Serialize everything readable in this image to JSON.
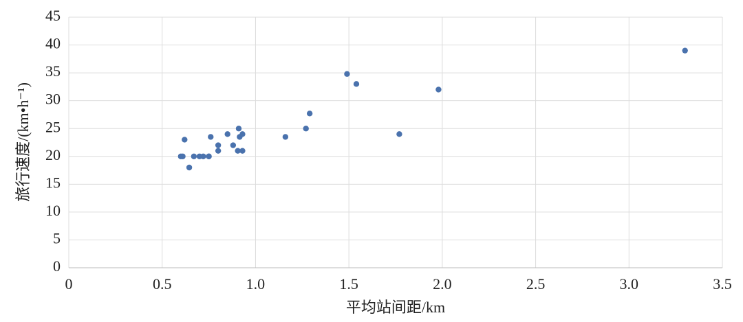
{
  "chart_data": {
    "type": "scatter",
    "x_label": "平均站间距/km",
    "y_label": "旅行速度/(km•h⁻¹)",
    "series": [
      {
        "color": "#4a72ad",
        "x": [
          0.6,
          0.61,
          0.62,
          0.645,
          0.67,
          0.7,
          0.72,
          0.75,
          0.75,
          0.76,
          0.8,
          0.8,
          0.85,
          0.88,
          0.91,
          0.905,
          0.915,
          0.93,
          0.93,
          1.16,
          1.27,
          1.29,
          1.49,
          1.54,
          1.77,
          1.98,
          3.3
        ],
        "values": [
          20,
          20,
          23,
          18,
          20,
          20,
          20,
          20,
          20,
          23.5,
          22,
          21,
          24,
          22,
          25,
          21,
          23.5,
          24,
          21,
          23.5,
          25,
          27.7,
          34.8,
          33,
          24,
          32,
          39
        ]
      }
    ],
    "xlim": [
      0,
      3.5
    ],
    "xticks": [
      0,
      0.5,
      {
        "value": 1,
        "label": "1.0"
      },
      1.5,
      {
        "value": 2,
        "label": "2.0"
      },
      2.5,
      {
        "value": 3,
        "label": "3.0"
      },
      3.5
    ],
    "ylim": [
      0,
      45
    ],
    "yticks": [
      0,
      5,
      10,
      15,
      20,
      25,
      30,
      35,
      40,
      45
    ],
    "grid": true
  }
}
